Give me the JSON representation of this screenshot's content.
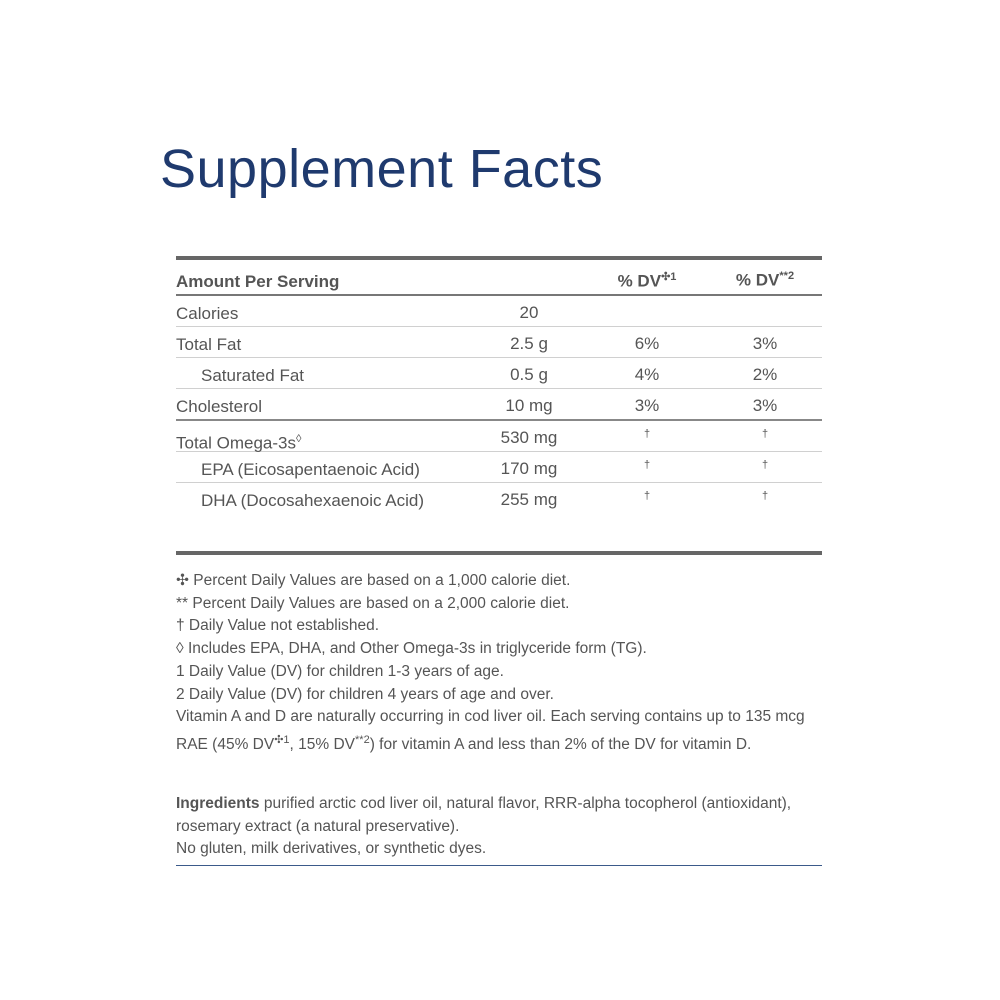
{
  "title": "Supplement Facts",
  "colors": {
    "title": "#1f3a6e",
    "text": "#555555",
    "rule": "#666666"
  },
  "table": {
    "headers": {
      "amount": "Amount Per Serving",
      "dv1": "% DV",
      "dv1_mark": "✣1",
      "dv2": "% DV",
      "dv2_mark": "**2"
    },
    "rows": [
      {
        "name": "Calories",
        "amount": "20",
        "dv1": "",
        "dv2": ""
      },
      {
        "name": "Total Fat",
        "amount": "2.5 g",
        "dv1": "6%",
        "dv2": "3%"
      },
      {
        "name": "Saturated Fat",
        "amount": "0.5 g",
        "dv1": "4%",
        "dv2": "2%"
      },
      {
        "name": "Cholesterol",
        "amount": "10 mg",
        "dv1": "3%",
        "dv2": "3%"
      },
      {
        "name": "Total Omega-3s",
        "mark": "◊",
        "amount": "530 mg",
        "dv1": "†",
        "dv2": "†"
      },
      {
        "name": "EPA (Eicosapentaenoic Acid)",
        "amount": "170 mg",
        "dv1": "†",
        "dv2": "†"
      },
      {
        "name": "DHA (Docosahexaenoic Acid)",
        "amount": "255 mg",
        "dv1": "†",
        "dv2": "†"
      }
    ]
  },
  "footnotes": [
    "✣ Percent Daily Values are based on a 1,000 calorie diet.",
    "** Percent Daily Values are based on a 2,000 calorie diet.",
    "† Daily Value not established.",
    "◊ Includes EPA, DHA, and Other Omega-3s in triglyceride form (TG).",
    "1 Daily Value (DV) for children 1-3 years of age.",
    "2 Daily Value (DV) for children 4 years of age and over."
  ],
  "vitamin_note": {
    "part1": "Vitamin A and D are naturally occurring in cod liver oil. Each serving contains up to 135 mcg RAE (45% DV",
    "mark1": "✣1",
    "part2": ", 15% DV",
    "mark2": "**2",
    "part3": ") for vitamin A and less than 2% of the DV for vitamin D."
  },
  "ingredients": {
    "label": "Ingredients",
    "text": " purified arctic cod liver oil, natural flavor, RRR-alpha tocopherol (antioxidant), rosemary extract (a natural preservative).",
    "free_from": "No gluten, milk derivatives, or synthetic dyes."
  }
}
